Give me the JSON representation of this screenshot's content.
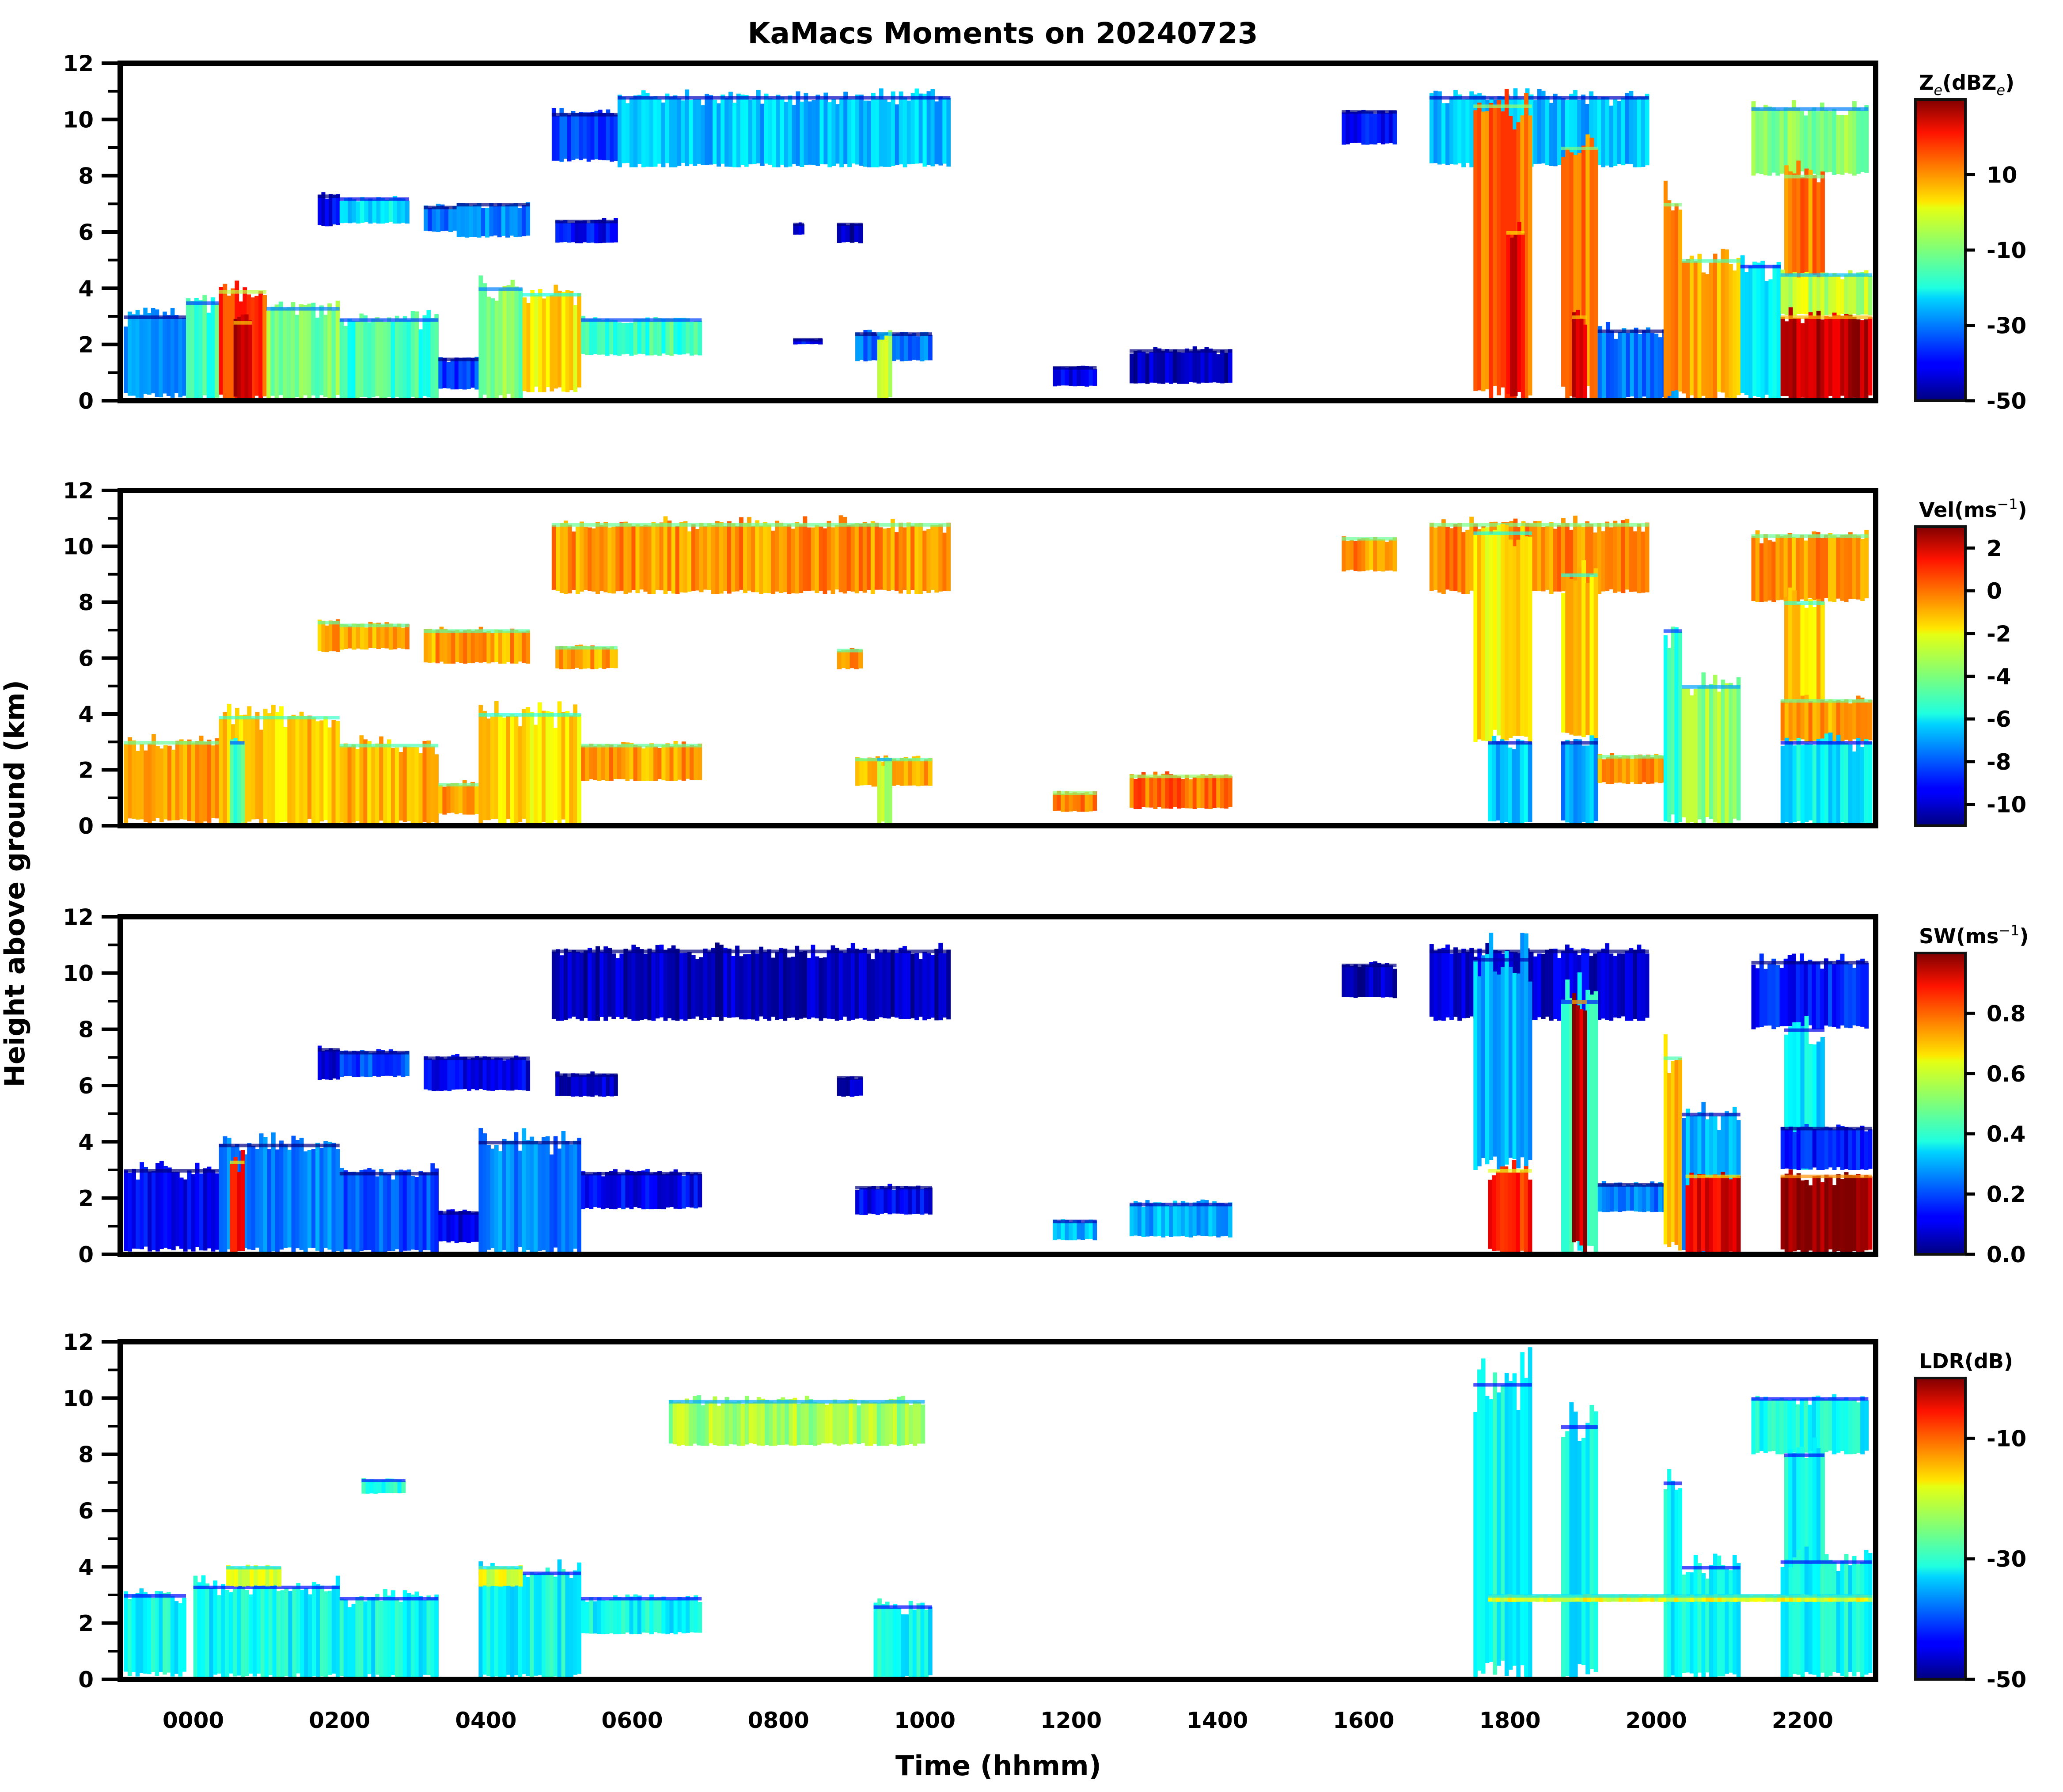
{
  "figure": {
    "title": "KaMacs Moments on 20240723",
    "ylabel": "Height above ground (km)",
    "xlabel": "Time (hhmm)"
  },
  "chart_data": {
    "type": "heatmap",
    "title": "KaMacs Moments on 20240723",
    "xlabel": "Time (hhmm)",
    "ylabel": "Height above ground (km)",
    "xlim_hours": [
      -1.0,
      23.0
    ],
    "ylim": [
      0,
      12
    ],
    "x_major_step_hours": 2,
    "x_minor_step_hours": 0.5,
    "y_major_step": 2,
    "y_minor_step": 1,
    "xtick_labels": [
      "0000",
      "0200",
      "0400",
      "0600",
      "0800",
      "1000",
      "1200",
      "1400",
      "1600",
      "1800",
      "2000",
      "2200"
    ],
    "xtick_values_hours": [
      0,
      2,
      4,
      6,
      8,
      10,
      12,
      14,
      16,
      18,
      20,
      22
    ],
    "ytick_labels": [
      "0",
      "2",
      "4",
      "6",
      "8",
      "10",
      "12"
    ],
    "ytick_values": [
      0,
      2,
      4,
      6,
      8,
      10,
      12
    ],
    "colormap": "jet",
    "panels": [
      {
        "id": "ze",
        "cbar_label_main": "Z",
        "cbar_label_sub": "e",
        "cbar_label_rest": "(dBZ",
        "cbar_label_sub2": "e",
        "cbar_label_end": ")",
        "vmin": -50,
        "vmax": 30,
        "cbar_ticks": [
          10,
          -10,
          -30,
          -50
        ],
        "cbar_tick_labels": [
          "10",
          "-10",
          "-30",
          "-50"
        ],
        "features": [
          {
            "t0": -0.95,
            "t1": -0.1,
            "h0": 0.1,
            "h1": 3.0,
            "v": -28
          },
          {
            "t0": -0.1,
            "t1": 0.35,
            "h0": 0.0,
            "h1": 3.5,
            "v": -15
          },
          {
            "t0": 0.35,
            "t1": 1.0,
            "h0": 0.0,
            "h1": 3.9,
            "v": 15
          },
          {
            "t0": 0.55,
            "t1": 0.8,
            "h0": 0.0,
            "h1": 2.8,
            "v": 24
          },
          {
            "t0": 1.0,
            "t1": 2.0,
            "h0": 0.0,
            "h1": 3.3,
            "v": -10
          },
          {
            "t0": 2.0,
            "t1": 3.35,
            "h0": 0.0,
            "h1": 2.9,
            "v": -15
          },
          {
            "t0": 3.35,
            "t1": 3.9,
            "h0": 0.4,
            "h1": 1.5,
            "v": -35
          },
          {
            "t0": 3.9,
            "t1": 4.5,
            "h0": 0.0,
            "h1": 4.0,
            "v": -10
          },
          {
            "t0": 4.5,
            "t1": 5.3,
            "h0": 0.3,
            "h1": 3.8,
            "v": 2
          },
          {
            "t0": 5.3,
            "t1": 6.95,
            "h0": 1.6,
            "h1": 2.9,
            "v": -15
          },
          {
            "t0": 8.2,
            "t1": 8.6,
            "h0": 2.0,
            "h1": 2.2,
            "v": -40
          },
          {
            "t0": 9.05,
            "t1": 10.1,
            "h0": 1.4,
            "h1": 2.4,
            "v": -30
          },
          {
            "t0": 9.35,
            "t1": 9.55,
            "h0": 0.0,
            "h1": 2.4,
            "v": -5
          },
          {
            "t0": 11.75,
            "t1": 12.35,
            "h0": 0.5,
            "h1": 1.2,
            "v": -42
          },
          {
            "t0": 12.8,
            "t1": 14.2,
            "h0": 0.6,
            "h1": 1.8,
            "v": -45
          },
          {
            "t0": 1.7,
            "t1": 2.0,
            "h0": 6.2,
            "h1": 7.3,
            "v": -40
          },
          {
            "t0": 2.0,
            "t1": 2.95,
            "h0": 6.3,
            "h1": 7.2,
            "v": -22
          },
          {
            "t0": 3.15,
            "t1": 3.6,
            "h0": 6.0,
            "h1": 6.9,
            "v": -32
          },
          {
            "t0": 3.6,
            "t1": 4.6,
            "h0": 5.8,
            "h1": 7.0,
            "v": -30
          },
          {
            "t0": 4.95,
            "t1": 5.8,
            "h0": 5.6,
            "h1": 6.4,
            "v": -40
          },
          {
            "t0": 8.2,
            "t1": 8.35,
            "h0": 5.9,
            "h1": 6.3,
            "v": -45
          },
          {
            "t0": 8.8,
            "t1": 9.15,
            "h0": 5.6,
            "h1": 6.3,
            "v": -45
          },
          {
            "t0": 4.9,
            "t1": 5.8,
            "h0": 8.5,
            "h1": 10.2,
            "v": -35
          },
          {
            "t0": 5.8,
            "t1": 10.35,
            "h0": 8.3,
            "h1": 10.8,
            "v": -25
          },
          {
            "t0": 15.7,
            "t1": 16.45,
            "h0": 9.1,
            "h1": 10.3,
            "v": -40
          },
          {
            "t0": 16.9,
            "t1": 19.9,
            "h0": 8.3,
            "h1": 10.8,
            "v": -25
          },
          {
            "t0": 17.5,
            "t1": 18.3,
            "h0": 0.0,
            "h1": 10.5,
            "v": 12
          },
          {
            "t0": 17.95,
            "t1": 18.2,
            "h0": 0.0,
            "h1": 6.0,
            "v": 22
          },
          {
            "t0": 18.7,
            "t1": 19.2,
            "h0": 0.0,
            "h1": 9.0,
            "v": 10
          },
          {
            "t0": 18.85,
            "t1": 19.05,
            "h0": 0.0,
            "h1": 3.0,
            "v": 24
          },
          {
            "t0": 19.2,
            "t1": 20.3,
            "h0": 0.0,
            "h1": 2.5,
            "v": -30
          },
          {
            "t0": 20.1,
            "t1": 20.35,
            "h0": 0.0,
            "h1": 7.0,
            "v": 10
          },
          {
            "t0": 20.35,
            "t1": 21.15,
            "h0": 0.0,
            "h1": 5.0,
            "v": 6
          },
          {
            "t0": 21.15,
            "t1": 21.7,
            "h0": 0.0,
            "h1": 4.8,
            "v": -20
          },
          {
            "t0": 21.3,
            "t1": 22.9,
            "h0": 8.0,
            "h1": 10.4,
            "v": -10
          },
          {
            "t0": 21.75,
            "t1": 22.3,
            "h0": 3.0,
            "h1": 8.0,
            "v": 10
          },
          {
            "t0": 21.7,
            "t1": 22.95,
            "h0": 3.0,
            "h1": 4.5,
            "v": -5
          },
          {
            "t0": 21.7,
            "t1": 22.95,
            "h0": 0.0,
            "h1": 3.0,
            "v": 25
          }
        ]
      },
      {
        "id": "vel",
        "cbar_label_main": "Vel(ms",
        "cbar_label_sup": "−1",
        "cbar_label_end": ")",
        "vmin": -11,
        "vmax": 3,
        "cbar_ticks": [
          2,
          0,
          -2,
          -4,
          -6,
          -8,
          -10
        ],
        "cbar_tick_labels": [
          "2",
          "0",
          "-2",
          "-4",
          "-6",
          "-8",
          "-10"
        ],
        "features": [
          {
            "t0": -0.95,
            "t1": 0.35,
            "h0": 0.1,
            "h1": 3.0,
            "v": -0.8
          },
          {
            "t0": 0.35,
            "t1": 2.0,
            "h0": 0.0,
            "h1": 3.9,
            "v": -1.5
          },
          {
            "t0": 0.5,
            "t1": 0.7,
            "h0": 0.0,
            "h1": 3.0,
            "v": -4.5
          },
          {
            "t0": 2.0,
            "t1": 3.35,
            "h0": 0.0,
            "h1": 2.9,
            "v": -1.2
          },
          {
            "t0": 3.35,
            "t1": 3.9,
            "h0": 0.4,
            "h1": 1.5,
            "v": -0.8
          },
          {
            "t0": 3.9,
            "t1": 5.3,
            "h0": 0.0,
            "h1": 4.0,
            "v": -1.8
          },
          {
            "t0": 5.3,
            "t1": 6.95,
            "h0": 1.6,
            "h1": 2.9,
            "v": -0.9
          },
          {
            "t0": 9.05,
            "t1": 10.1,
            "h0": 1.4,
            "h1": 2.4,
            "v": -1.0
          },
          {
            "t0": 9.35,
            "t1": 9.55,
            "h0": 0.0,
            "h1": 2.4,
            "v": -3.5
          },
          {
            "t0": 11.75,
            "t1": 12.35,
            "h0": 0.5,
            "h1": 1.2,
            "v": -0.3
          },
          {
            "t0": 12.8,
            "t1": 14.2,
            "h0": 0.6,
            "h1": 1.8,
            "v": -0.2
          },
          {
            "t0": 1.7,
            "t1": 2.0,
            "h0": 6.2,
            "h1": 7.3,
            "v": -1.0
          },
          {
            "t0": 2.0,
            "t1": 2.95,
            "h0": 6.3,
            "h1": 7.2,
            "v": -1.0
          },
          {
            "t0": 3.15,
            "t1": 4.6,
            "h0": 5.8,
            "h1": 7.0,
            "v": -1.0
          },
          {
            "t0": 4.95,
            "t1": 5.8,
            "h0": 5.6,
            "h1": 6.4,
            "v": -1.0
          },
          {
            "t0": 8.8,
            "t1": 9.15,
            "h0": 5.6,
            "h1": 6.3,
            "v": -1.0
          },
          {
            "t0": 4.9,
            "t1": 10.35,
            "h0": 8.3,
            "h1": 10.8,
            "v": -0.8
          },
          {
            "t0": 15.7,
            "t1": 16.45,
            "h0": 9.1,
            "h1": 10.3,
            "v": -0.8
          },
          {
            "t0": 16.9,
            "t1": 19.9,
            "h0": 8.3,
            "h1": 10.8,
            "v": -0.6
          },
          {
            "t0": 17.5,
            "t1": 18.3,
            "h0": 3.0,
            "h1": 10.5,
            "v": -2.0
          },
          {
            "t0": 17.7,
            "t1": 18.3,
            "h0": 0.0,
            "h1": 3.0,
            "v": -6.5
          },
          {
            "t0": 18.7,
            "t1": 19.2,
            "h0": 3.0,
            "h1": 9.0,
            "v": -1.8
          },
          {
            "t0": 18.7,
            "t1": 19.2,
            "h0": 0.0,
            "h1": 3.0,
            "v": -7.0
          },
          {
            "t0": 19.2,
            "t1": 20.3,
            "h0": 1.5,
            "h1": 2.5,
            "v": -0.8
          },
          {
            "t0": 20.1,
            "t1": 20.35,
            "h0": 0.0,
            "h1": 7.0,
            "v": -5.0
          },
          {
            "t0": 20.35,
            "t1": 21.15,
            "h0": 0.0,
            "h1": 5.0,
            "v": -3.5
          },
          {
            "t0": 21.3,
            "t1": 22.9,
            "h0": 8.0,
            "h1": 10.4,
            "v": -0.8
          },
          {
            "t0": 21.75,
            "t1": 22.3,
            "h0": 3.0,
            "h1": 8.0,
            "v": -1.5
          },
          {
            "t0": 21.7,
            "t1": 22.95,
            "h0": 3.0,
            "h1": 4.5,
            "v": -0.8
          },
          {
            "t0": 21.7,
            "t1": 22.95,
            "h0": 0.0,
            "h1": 3.0,
            "v": -6.0
          }
        ]
      },
      {
        "id": "sw",
        "cbar_label_main": "SW(ms",
        "cbar_label_sup": "−1",
        "cbar_label_end": ")",
        "vmin": 0.0,
        "vmax": 1.0,
        "cbar_ticks": [
          0.8,
          0.6,
          0.4,
          0.2,
          0.0
        ],
        "cbar_tick_labels": [
          "0.8",
          "0.6",
          "0.4",
          "0.2",
          "0.0"
        ],
        "features": [
          {
            "t0": -0.95,
            "t1": 0.35,
            "h0": 0.1,
            "h1": 3.0,
            "v": 0.12
          },
          {
            "t0": 0.35,
            "t1": 2.0,
            "h0": 0.0,
            "h1": 3.9,
            "v": 0.25
          },
          {
            "t0": 0.5,
            "t1": 0.7,
            "h0": 0.0,
            "h1": 3.3,
            "v": 0.85
          },
          {
            "t0": 2.0,
            "t1": 3.35,
            "h0": 0.0,
            "h1": 2.9,
            "v": 0.2
          },
          {
            "t0": 3.35,
            "t1": 3.9,
            "h0": 0.4,
            "h1": 1.5,
            "v": 0.1
          },
          {
            "t0": 3.9,
            "t1": 5.3,
            "h0": 0.0,
            "h1": 4.0,
            "v": 0.25
          },
          {
            "t0": 5.3,
            "t1": 6.95,
            "h0": 1.6,
            "h1": 2.9,
            "v": 0.12
          },
          {
            "t0": 9.05,
            "t1": 10.1,
            "h0": 1.4,
            "h1": 2.4,
            "v": 0.12
          },
          {
            "t0": 11.75,
            "t1": 12.35,
            "h0": 0.5,
            "h1": 1.2,
            "v": 0.3
          },
          {
            "t0": 12.8,
            "t1": 14.2,
            "h0": 0.6,
            "h1": 1.8,
            "v": 0.3
          },
          {
            "t0": 1.7,
            "t1": 2.0,
            "h0": 6.2,
            "h1": 7.3,
            "v": 0.08
          },
          {
            "t0": 2.0,
            "t1": 2.95,
            "h0": 6.3,
            "h1": 7.2,
            "v": 0.2
          },
          {
            "t0": 3.15,
            "t1": 4.6,
            "h0": 5.8,
            "h1": 7.0,
            "v": 0.1
          },
          {
            "t0": 4.95,
            "t1": 5.8,
            "h0": 5.6,
            "h1": 6.4,
            "v": 0.08
          },
          {
            "t0": 8.8,
            "t1": 9.15,
            "h0": 5.6,
            "h1": 6.3,
            "v": 0.06
          },
          {
            "t0": 4.9,
            "t1": 10.35,
            "h0": 8.3,
            "h1": 10.8,
            "v": 0.06
          },
          {
            "t0": 15.7,
            "t1": 16.45,
            "h0": 9.1,
            "h1": 10.3,
            "v": 0.06
          },
          {
            "t0": 16.9,
            "t1": 19.9,
            "h0": 8.3,
            "h1": 10.8,
            "v": 0.08
          },
          {
            "t0": 17.5,
            "t1": 18.3,
            "h0": 3.0,
            "h1": 10.5,
            "v": 0.3
          },
          {
            "t0": 17.7,
            "t1": 18.3,
            "h0": 0.0,
            "h1": 3.0,
            "v": 0.85
          },
          {
            "t0": 18.7,
            "t1": 19.2,
            "h0": 0.0,
            "h1": 9.0,
            "v": 0.4
          },
          {
            "t0": 18.85,
            "t1": 19.05,
            "h0": 0.0,
            "h1": 9.0,
            "v": 0.95
          },
          {
            "t0": 19.2,
            "t1": 20.3,
            "h0": 1.5,
            "h1": 2.5,
            "v": 0.25
          },
          {
            "t0": 20.1,
            "t1": 20.35,
            "h0": 0.0,
            "h1": 7.0,
            "v": 0.7
          },
          {
            "t0": 20.35,
            "t1": 21.15,
            "h0": 0.0,
            "h1": 5.0,
            "v": 0.3
          },
          {
            "t0": 20.4,
            "t1": 21.15,
            "h0": 0.0,
            "h1": 2.8,
            "v": 0.9
          },
          {
            "t0": 21.3,
            "t1": 22.9,
            "h0": 8.0,
            "h1": 10.4,
            "v": 0.15
          },
          {
            "t0": 21.75,
            "t1": 22.3,
            "h0": 3.0,
            "h1": 8.0,
            "v": 0.35
          },
          {
            "t0": 21.7,
            "t1": 22.95,
            "h0": 3.0,
            "h1": 4.5,
            "v": 0.15
          },
          {
            "t0": 21.7,
            "t1": 22.95,
            "h0": 0.0,
            "h1": 2.8,
            "v": 0.98
          }
        ]
      },
      {
        "id": "ldr",
        "cbar_label_main": "LDR(dB)",
        "vmin": -50,
        "vmax": 0,
        "cbar_ticks": [
          -10,
          -30,
          -50
        ],
        "cbar_tick_labels": [
          "-10",
          "-30",
          "-50"
        ],
        "features": [
          {
            "t0": -0.95,
            "t1": -0.1,
            "h0": 0.1,
            "h1": 3.0,
            "v": -31
          },
          {
            "t0": 0.0,
            "t1": 2.0,
            "h0": 0.0,
            "h1": 3.3,
            "v": -31
          },
          {
            "t0": 0.45,
            "t1": 1.2,
            "h0": 3.3,
            "h1": 4.0,
            "v": -20
          },
          {
            "t0": 2.0,
            "t1": 3.35,
            "h0": 0.0,
            "h1": 2.9,
            "v": -31
          },
          {
            "t0": 3.9,
            "t1": 5.3,
            "h0": 0.0,
            "h1": 3.8,
            "v": -31
          },
          {
            "t0": 3.9,
            "t1": 4.5,
            "h0": 3.3,
            "h1": 4.0,
            "v": -20
          },
          {
            "t0": 5.3,
            "t1": 6.95,
            "h0": 1.6,
            "h1": 2.9,
            "v": -31
          },
          {
            "t0": 9.3,
            "t1": 10.1,
            "h0": 0.0,
            "h1": 2.6,
            "v": -31
          },
          {
            "t0": 2.3,
            "t1": 2.9,
            "h0": 6.6,
            "h1": 7.1,
            "v": -30
          },
          {
            "t0": 6.5,
            "t1": 10.0,
            "h0": 8.3,
            "h1": 9.9,
            "v": -23
          },
          {
            "t0": 17.5,
            "t1": 18.3,
            "h0": 0.0,
            "h1": 10.5,
            "v": -31
          },
          {
            "t0": 18.7,
            "t1": 19.2,
            "h0": 0.0,
            "h1": 9.0,
            "v": -31
          },
          {
            "t0": 20.1,
            "t1": 20.35,
            "h0": 0.0,
            "h1": 7.0,
            "v": -31
          },
          {
            "t0": 20.35,
            "t1": 21.15,
            "h0": 0.0,
            "h1": 4.0,
            "v": -31
          },
          {
            "t0": 21.3,
            "t1": 22.9,
            "h0": 8.0,
            "h1": 10.0,
            "v": -31
          },
          {
            "t0": 21.75,
            "t1": 22.3,
            "h0": 3.0,
            "h1": 8.0,
            "v": -31
          },
          {
            "t0": 21.7,
            "t1": 22.95,
            "h0": 0.0,
            "h1": 4.2,
            "v": -31
          },
          {
            "t0": 17.7,
            "t1": 22.95,
            "h0": 2.75,
            "h1": 3.0,
            "v": -20
          }
        ]
      }
    ]
  }
}
